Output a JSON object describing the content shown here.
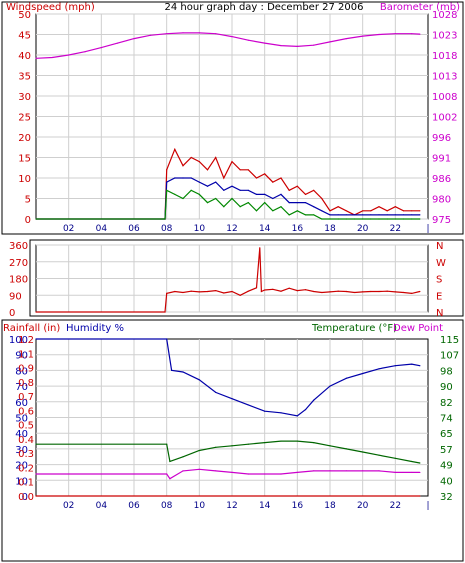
{
  "chart_data": [
    {
      "type": "line",
      "title": "24 hour graph day : December 27 2006",
      "ylabel": "Windspeed (mph)",
      "y2label": "Barometer (mb)",
      "x_tick_labels": [
        "02",
        "04",
        "06",
        "08",
        "10",
        "12",
        "14",
        "16",
        "18",
        "20",
        "22"
      ],
      "ylim": [
        0,
        50
      ],
      "y_ticks": [
        0,
        5,
        10,
        15,
        20,
        25,
        30,
        35,
        40,
        45,
        50
      ],
      "y2_tick_labels": [
        "975",
        "980",
        "986",
        "991",
        "996",
        "1002",
        "1008",
        "1013",
        "1018",
        "1023",
        "1028"
      ],
      "y2_ticks": [
        0,
        5,
        10,
        15,
        20,
        25,
        30,
        35,
        40,
        45,
        50
      ],
      "grid": true,
      "series": [
        {
          "color": "#cc0000",
          "x": [
            0,
            7.9,
            8.0,
            8.5,
            9.0,
            9.5,
            10,
            10.5,
            11,
            11.5,
            12,
            12.5,
            13,
            13.5,
            14,
            14.5,
            15,
            15.5,
            16,
            16.5,
            17,
            17.5,
            18,
            18.5,
            19,
            19.5,
            20,
            20.5,
            21,
            21.5,
            22,
            22.5,
            23,
            23.5
          ],
          "values": [
            0,
            0,
            12,
            17,
            13,
            15,
            14,
            12,
            15,
            10,
            14,
            12,
            12,
            10,
            11,
            9,
            10,
            7,
            8,
            6,
            7,
            5,
            2,
            3,
            2,
            1,
            2,
            2,
            3,
            2,
            3,
            2,
            2,
            2
          ]
        },
        {
          "color": "#0000aa",
          "x": [
            0,
            7.9,
            8.0,
            8.5,
            9.0,
            9.5,
            10,
            10.5,
            11,
            11.5,
            12,
            12.5,
            13,
            13.5,
            14,
            14.5,
            15,
            15.5,
            16,
            16.5,
            17,
            17.5,
            18,
            18.5,
            19,
            19.5,
            20,
            20.5,
            21,
            21.5,
            22,
            22.5,
            23,
            23.5
          ],
          "values": [
            0,
            0,
            9,
            10,
            10,
            10,
            9,
            8,
            9,
            7,
            8,
            7,
            7,
            6,
            6,
            5,
            6,
            4,
            4,
            4,
            3,
            2,
            1,
            1,
            1,
            1,
            1,
            1,
            1,
            1,
            1,
            1,
            1,
            1
          ]
        },
        {
          "color": "#008800",
          "x": [
            0,
            7.9,
            8.0,
            8.5,
            9.0,
            9.5,
            10,
            10.5,
            11,
            11.5,
            12,
            12.5,
            13,
            13.5,
            14,
            14.5,
            15,
            15.5,
            16,
            16.5,
            17,
            17.5,
            18,
            18.5,
            19,
            19.5,
            20,
            20.5,
            21,
            21.5,
            22,
            22.5,
            23,
            23.5
          ],
          "values": [
            0,
            0,
            7,
            6,
            5,
            7,
            6,
            4,
            5,
            3,
            5,
            3,
            4,
            2,
            4,
            2,
            3,
            1,
            2,
            1,
            1,
            0,
            0,
            0,
            0,
            0,
            0,
            0,
            0,
            0,
            0,
            0,
            0,
            0
          ]
        },
        {
          "color": "#cc00cc",
          "axis": "right",
          "x": [
            0,
            1,
            2,
            3,
            4,
            5,
            6,
            7,
            8,
            9,
            10,
            11,
            12,
            13,
            14,
            15,
            16,
            17,
            18,
            19,
            20,
            21,
            22,
            23,
            23.5
          ],
          "values": [
            39.2,
            39.4,
            40.0,
            40.8,
            41.8,
            42.9,
            44.0,
            44.8,
            45.2,
            45.4,
            45.4,
            45.2,
            44.5,
            43.6,
            42.9,
            42.3,
            42.1,
            42.4,
            43.2,
            44.0,
            44.6,
            45.0,
            45.2,
            45.2,
            45.1
          ]
        }
      ]
    },
    {
      "type": "line",
      "y_tick_labels": [
        "0",
        "90",
        "180",
        "270",
        "360"
      ],
      "ylim": [
        0,
        360
      ],
      "y_ticks": [
        0,
        90,
        180,
        270,
        360
      ],
      "y2_tick_labels": [
        "N",
        "E",
        "S",
        "W",
        "N"
      ],
      "grid": true,
      "series": [
        {
          "color": "#cc0000",
          "x": [
            0,
            7.9,
            8.0,
            8.5,
            9,
            9.5,
            10,
            10.5,
            11,
            11.5,
            12,
            12.5,
            13,
            13.5,
            13.7,
            13.8,
            14,
            14.5,
            15,
            15.5,
            16,
            16.5,
            17,
            17.5,
            18,
            18.5,
            19,
            19.5,
            20,
            20.5,
            21,
            21.5,
            22,
            22.5,
            23,
            23.5
          ],
          "values": [
            0,
            0,
            100,
            110,
            105,
            112,
            108,
            110,
            115,
            102,
            110,
            90,
            112,
            130,
            345,
            110,
            118,
            122,
            112,
            128,
            115,
            120,
            110,
            105,
            108,
            112,
            110,
            105,
            108,
            110,
            110,
            112,
            108,
            105,
            100,
            110
          ]
        }
      ]
    },
    {
      "type": "line",
      "ylabel": "Rainfall (in)",
      "y1b_label": "Humidity %",
      "y2label": "Temperature (°F)",
      "y2b_label": "Dew Point",
      "x_tick_labels": [
        "02",
        "04",
        "06",
        "08",
        "10",
        "12",
        "14",
        "16",
        "18",
        "20",
        "22"
      ],
      "ylim": [
        0,
        100
      ],
      "humidity_tick_labels": [
        "0",
        "10",
        "20",
        "30",
        "40",
        "50",
        "60",
        "70",
        "80",
        "90",
        "100"
      ],
      "rain_tick_labels": [
        "0.0",
        "0.1",
        "0.2",
        "0.3",
        "0.4",
        "0.5",
        "0.6",
        "0.7",
        "0.8",
        "0.9",
        "1.1",
        "1.2"
      ],
      "y2_tick_labels": [
        "32",
        "40",
        "49",
        "57",
        "65",
        "74",
        "82",
        "90",
        "98",
        "107",
        "115"
      ],
      "grid": true,
      "series": [
        {
          "name": "Humidity %",
          "color": "#0000aa",
          "x": [
            0,
            8.0,
            8.3,
            9,
            10,
            11,
            12,
            13,
            14,
            15,
            16,
            16.5,
            17,
            18,
            19,
            20,
            21,
            22,
            23,
            23.5
          ],
          "values": [
            100,
            100,
            80,
            79,
            74,
            66,
            62,
            58,
            54,
            53,
            51,
            55,
            61,
            70,
            75,
            78,
            81,
            83,
            84,
            83
          ]
        },
        {
          "name": "Temperature (°F)",
          "color": "#006600",
          "x": [
            0,
            8.0,
            8.2,
            9,
            10,
            11,
            12,
            13,
            14,
            15,
            16,
            17,
            18,
            19,
            20,
            21,
            22,
            23,
            23.5
          ],
          "values": [
            33,
            33,
            22,
            25,
            29,
            31,
            32,
            33,
            34,
            35,
            35,
            34,
            32,
            30,
            28,
            26,
            24,
            22,
            21
          ]
        },
        {
          "name": "Dew Point",
          "color": "#cc00cc",
          "x": [
            0,
            8.0,
            8.2,
            9,
            10,
            11,
            12,
            13,
            14,
            15,
            16,
            17,
            18,
            19,
            20,
            21,
            22,
            23,
            23.5
          ],
          "values": [
            14,
            14,
            11,
            16,
            17,
            16,
            15,
            14,
            14,
            14,
            15,
            16,
            16,
            16,
            16,
            16,
            15,
            15,
            15
          ]
        },
        {
          "name": "Rainfall (in)",
          "color": "#cc0000",
          "x": [
            0,
            23.5
          ],
          "values": [
            0,
            0
          ]
        }
      ]
    }
  ]
}
